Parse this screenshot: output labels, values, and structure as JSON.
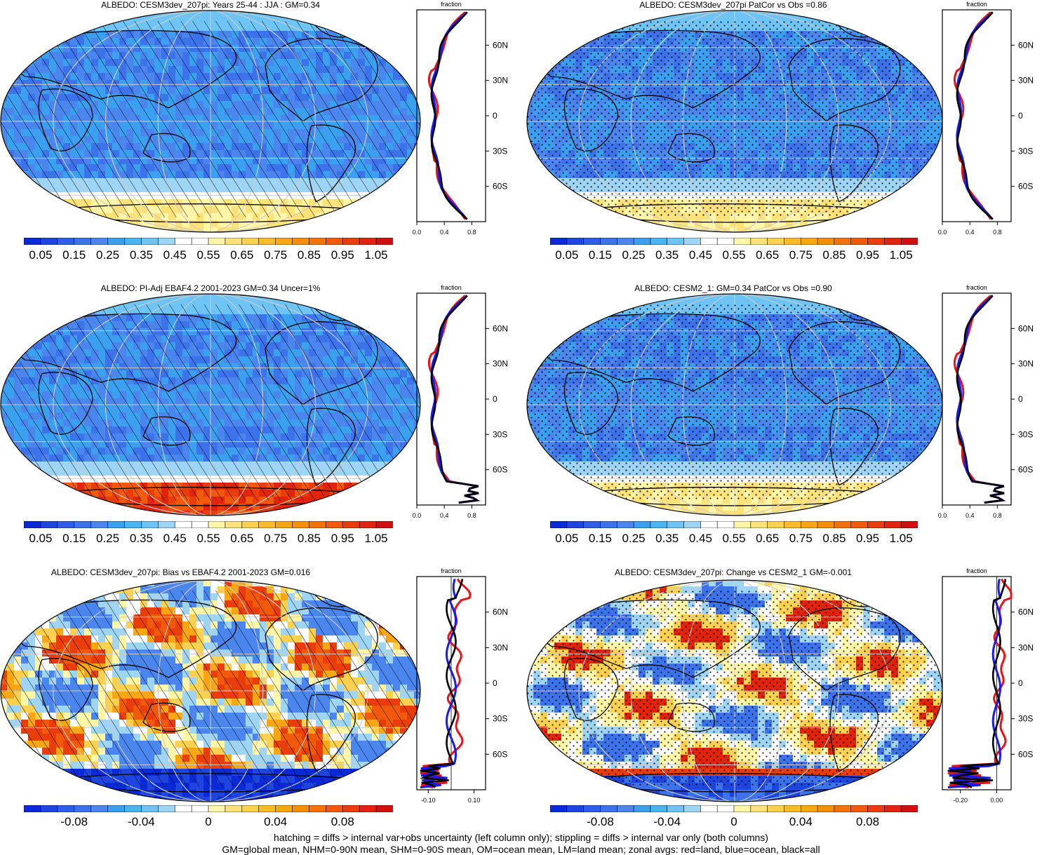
{
  "panels": [
    {
      "title": "ALBEDO: CESM3dev_207pi: Years 25-44 : JJA : GM=0.34",
      "kind": "abs",
      "overlay": "hatch",
      "col": 0,
      "row": 0,
      "zonal": {
        "xticks": [
          "0.0",
          "0.4",
          "0.8"
        ],
        "xlim": [
          0,
          1.0
        ],
        "ylabels": [
          "60N",
          "30N",
          "0",
          "30S",
          "60S"
        ],
        "xlabel": "fraction",
        "series": [
          {
            "name": "land",
            "color": "#ee1111"
          },
          {
            "name": "ocean",
            "color": "#1a1aee"
          },
          {
            "name": "all",
            "color": "#000000"
          }
        ]
      }
    },
    {
      "title": "ALBEDO: CESM3dev_207pi PatCor vs Obs =0.86",
      "kind": "abs",
      "overlay": "stipple",
      "col": 1,
      "row": 0,
      "zonal": {
        "xticks": [
          "0.0",
          "0.4",
          "0.8"
        ],
        "xlim": [
          0,
          1.0
        ],
        "ylabels": [
          "60N",
          "30N",
          "0",
          "30S",
          "60S"
        ],
        "xlabel": "fraction",
        "series": [
          {
            "name": "land",
            "color": "#ee1111"
          },
          {
            "name": "ocean",
            "color": "#1a1aee"
          },
          {
            "name": "all",
            "color": "#000000"
          }
        ]
      }
    },
    {
      "title": "ALBEDO: PI-Adj EBAF4.2 2001-2023 GM=0.34 Uncer=1%",
      "kind": "obs",
      "overlay": "hatch",
      "col": 0,
      "row": 1,
      "zonal": {
        "xticks": [
          "0.0",
          "0.4",
          "0.8"
        ],
        "xlim": [
          0,
          1.0
        ],
        "ylabels": [
          "60N",
          "30N",
          "0",
          "30S",
          "60S"
        ],
        "xlabel": "fraction",
        "series": [
          {
            "name": "land",
            "color": "#ee1111"
          },
          {
            "name": "ocean",
            "color": "#1a1aee"
          },
          {
            "name": "all",
            "color": "#000000"
          }
        ]
      }
    },
    {
      "title": "ALBEDO: CESM2_1: GM=0.34 PatCor vs Obs =0.90",
      "kind": "abs",
      "overlay": "stipple",
      "col": 1,
      "row": 1,
      "zonal": {
        "xticks": [
          "0.0",
          "0.4",
          "0.8"
        ],
        "xlim": [
          0,
          1.0
        ],
        "ylabels": [
          "60N",
          "30N",
          "0",
          "30S",
          "60S"
        ],
        "xlabel": "fraction",
        "series": [
          {
            "name": "land",
            "color": "#ee1111"
          },
          {
            "name": "ocean",
            "color": "#1a1aee"
          },
          {
            "name": "all",
            "color": "#000000"
          }
        ]
      }
    },
    {
      "title": "ALBEDO: CESM3dev_207pi: Bias vs EBAF4.2 2001-2023 GM=0.016",
      "kind": "bias",
      "overlay": "hatch",
      "col": 0,
      "row": 2,
      "zonal": {
        "xticks": [
          "-0.10",
          "0.10"
        ],
        "xlim": [
          -0.15,
          0.15
        ],
        "ylabels": [
          "60N",
          "30N",
          "0",
          "30S",
          "60S"
        ],
        "xlabel": "fraction",
        "series": [
          {
            "name": "land",
            "color": "#ee1111"
          },
          {
            "name": "ocean",
            "color": "#1a1aee"
          },
          {
            "name": "all",
            "color": "#000000"
          }
        ]
      }
    },
    {
      "title": "ALBEDO: CESM3dev_207pi: Change vs CESM2_1 GM=-0.001",
      "kind": "change",
      "overlay": "stipple",
      "col": 1,
      "row": 2,
      "zonal": {
        "xticks": [
          "-0.20",
          "0.00"
        ],
        "xlim": [
          -0.3,
          0.08
        ],
        "ylabels": [
          "60N",
          "30N",
          "0",
          "30S",
          "60S"
        ],
        "xlabel": "fraction",
        "series": [
          {
            "name": "land",
            "color": "#ee1111"
          },
          {
            "name": "ocean",
            "color": "#1a1aee"
          },
          {
            "name": "all",
            "color": "#000000"
          }
        ]
      }
    }
  ],
  "colorbars": {
    "abs": {
      "labels": [
        "0.05",
        "0.15",
        "0.25",
        "0.35",
        "0.45",
        "0.55",
        "0.65",
        "0.75",
        "0.85",
        "0.95",
        "1.05"
      ],
      "colors": [
        "#0a2ad8",
        "#1f45e0",
        "#2f5ee6",
        "#3c72ea",
        "#4a86ee",
        "#3aa0ef",
        "#48b4f2",
        "#6ec4f4",
        "#9ed4f4",
        "#ffffff",
        "#ffffff",
        "#fff6a8",
        "#fde27a",
        "#fcd050",
        "#fbba2a",
        "#f9a614",
        "#f78e0a",
        "#f4720a",
        "#f05a0a",
        "#e93e0c",
        "#e1240e",
        "#d0100e"
      ]
    },
    "diff": {
      "labels": [
        "-0.08",
        "-0.04",
        "0",
        "0.04",
        "0.08"
      ],
      "colors": [
        "#0a2ad8",
        "#1f45e0",
        "#2f5ee6",
        "#3c72ea",
        "#4a86ee",
        "#3aa0ef",
        "#48b4f2",
        "#6ec4f4",
        "#9ed4f4",
        "#ffffff",
        "#ffffff",
        "#fff6a8",
        "#fde27a",
        "#fcd050",
        "#fbba2a",
        "#f9a614",
        "#f78e0a",
        "#f4720a",
        "#f05a0a",
        "#e93e0c",
        "#e1240e",
        "#d0100e"
      ]
    }
  },
  "chart_data": [
    {
      "type": "heatmap",
      "title": "ALBEDO: CESM3dev_207pi: Years 25-44 : JJA : GM=0.34",
      "colorbar_labels": [
        "0.05",
        "0.15",
        "0.25",
        "0.35",
        "0.45",
        "0.55",
        "0.65",
        "0.75",
        "0.85",
        "0.95",
        "1.05"
      ]
    },
    {
      "type": "line",
      "title": "fraction",
      "x_ticks": [
        "0.0",
        "0.4",
        "0.8"
      ],
      "y_ticks": [
        "60N",
        "30N",
        "0",
        "30S",
        "60S"
      ],
      "series": [
        {
          "name": "land",
          "color": "#ee1111"
        },
        {
          "name": "ocean",
          "color": "#1a1aee"
        },
        {
          "name": "all",
          "color": "#000000"
        }
      ]
    },
    {
      "type": "heatmap",
      "title": "ALBEDO: CESM3dev_207pi PatCor vs Obs =0.86",
      "colorbar_labels": [
        "0.05",
        "0.15",
        "0.25",
        "0.35",
        "0.45",
        "0.55",
        "0.65",
        "0.75",
        "0.85",
        "0.95",
        "1.05"
      ]
    },
    {
      "type": "heatmap",
      "title": "ALBEDO: PI-Adj EBAF4.2 2001-2023 GM=0.34 Uncer=1%",
      "colorbar_labels": [
        "0.05",
        "0.15",
        "0.25",
        "0.35",
        "0.45",
        "0.55",
        "0.65",
        "0.75",
        "0.85",
        "0.95",
        "1.05"
      ]
    },
    {
      "type": "heatmap",
      "title": "ALBEDO: CESM2_1: GM=0.34 PatCor vs Obs =0.90",
      "colorbar_labels": [
        "0.05",
        "0.15",
        "0.25",
        "0.35",
        "0.45",
        "0.55",
        "0.65",
        "0.75",
        "0.85",
        "0.95",
        "1.05"
      ]
    },
    {
      "type": "heatmap",
      "title": "ALBEDO: CESM3dev_207pi: Bias vs EBAF4.2 2001-2023 GM=0.016",
      "colorbar_labels": [
        "-0.08",
        "-0.04",
        "0",
        "0.04",
        "0.08"
      ]
    },
    {
      "type": "heatmap",
      "title": "ALBEDO: CESM3dev_207pi: Change vs CESM2_1 GM=-0.001",
      "colorbar_labels": [
        "-0.08",
        "-0.04",
        "0",
        "0.04",
        "0.08"
      ]
    }
  ],
  "footnote": {
    "line1": "hatching = diffs > internal var+obs uncertainty (left column only); stippling = diffs > internal var only (both columns)",
    "line2": "GM=global mean, NHM=0-90N mean, SHM=0-90S mean, OM=ocean mean, LM=land mean; zonal avgs: red=land, blue=ocean, black=all"
  }
}
